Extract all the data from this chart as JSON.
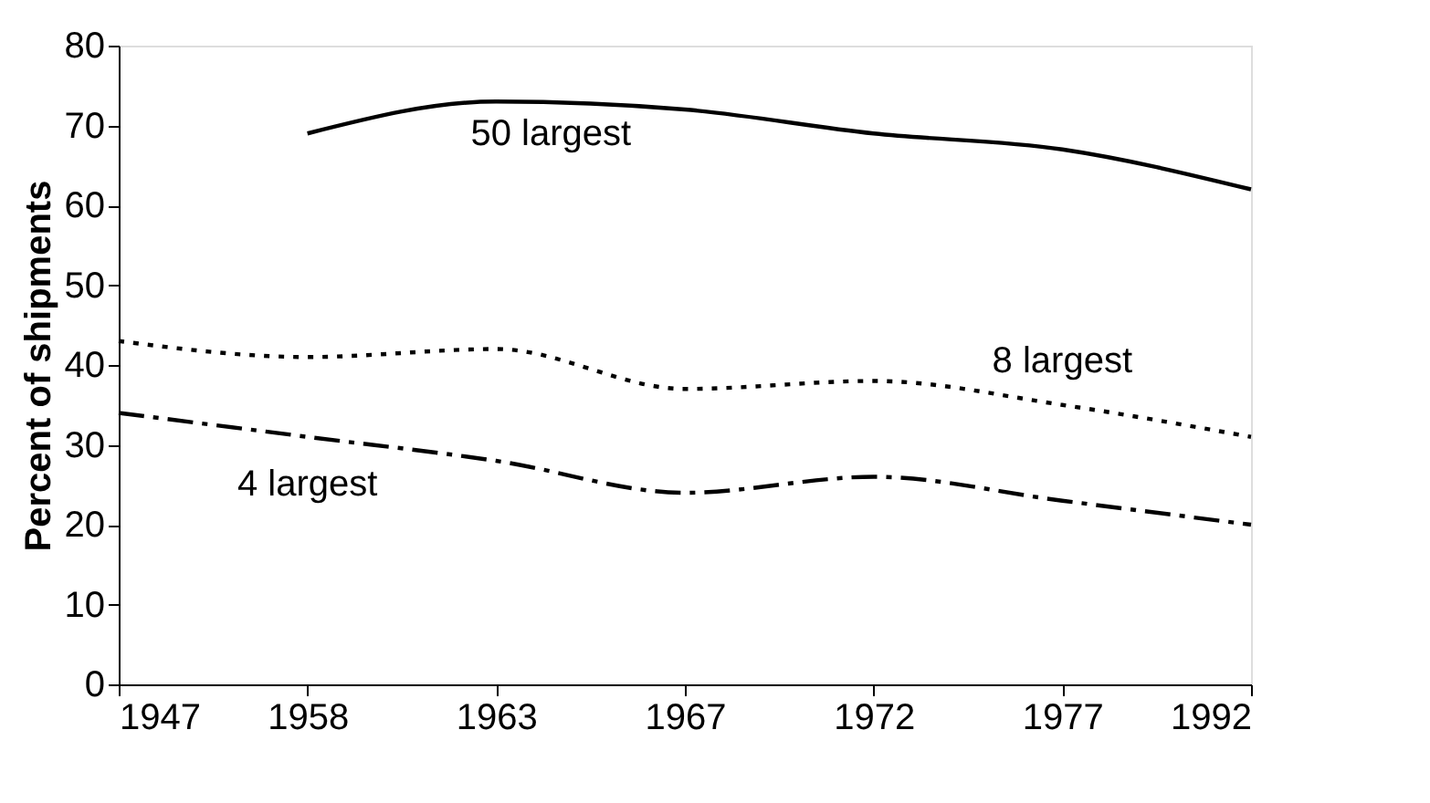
{
  "chart_data": {
    "type": "line",
    "ylabel": "Percent of shipments",
    "categories": [
      "1947",
      "1958",
      "1963",
      "1967",
      "1972",
      "1977",
      "1992"
    ],
    "series": [
      {
        "name": "50 largest",
        "color": "#000000",
        "line_style": "solid",
        "values": [
          null,
          69,
          73,
          72,
          69,
          67,
          62
        ]
      },
      {
        "name": "8 largest",
        "color": "#000000",
        "line_style": "dotted",
        "values": [
          43,
          41,
          42,
          37,
          38,
          35,
          31
        ]
      },
      {
        "name": "4 largest",
        "color": "#000000",
        "line_style": "dashed",
        "values": [
          34,
          31,
          28,
          24,
          26,
          23,
          20
        ]
      }
    ],
    "ylim": [
      0,
      80
    ],
    "yticks": [
      0,
      10,
      20,
      30,
      40,
      50,
      60,
      70,
      80
    ],
    "marker": "none"
  }
}
